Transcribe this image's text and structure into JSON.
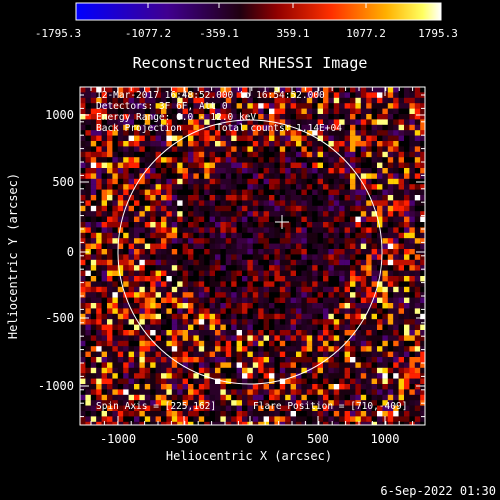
{
  "colorbar": {
    "ticks": [
      "-1795.3",
      "-1077.2",
      "-359.1",
      "359.1",
      "1077.2",
      "1795.3"
    ],
    "range": [
      -1795.3,
      1795.3
    ],
    "colormap": "hot-with-blue-negative",
    "colors": [
      "#0000ff",
      "#400080",
      "#000000",
      "#b00000",
      "#ff8000",
      "#ffff00",
      "#ffffff"
    ]
  },
  "plot": {
    "title": "Reconstructed RHESSI Image",
    "info_lines": [
      "12-Mar-2017 16:48:52.000 to 16:54:52.000",
      "Detectors: 3F 6F, Att 0",
      "Energy Range: 6.0 - 12.0 keV",
      "Back Projection      Total counts: 1.14E+04"
    ],
    "spin_axis": "Spin Axis = [225,162]",
    "flare_position": "Flare Position = [710,-409]",
    "xlabel": "Heliocentric X (arcsec)",
    "ylabel": "Heliocentric Y (arcsec)",
    "xticks": [
      "-1000",
      "-500",
      "0",
      "500",
      "1000"
    ],
    "yticks": [
      "1000",
      "500",
      "0",
      "-500",
      "-1000"
    ],
    "xlim": [
      -1280,
      1280
    ],
    "ylim": [
      -1280,
      1280
    ]
  },
  "footer": {
    "timestamp": "6-Sep-2022 01:30"
  }
}
